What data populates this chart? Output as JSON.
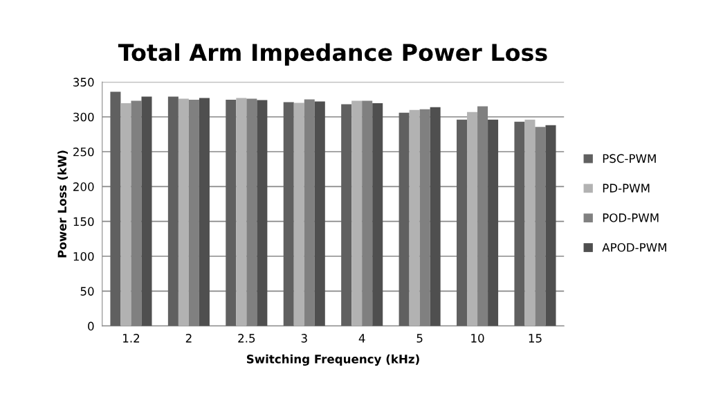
{
  "chart_data": {
    "type": "bar",
    "title": "Total Arm Impedance Power Loss",
    "xlabel": "Switching Frequency (kHz)",
    "ylabel": "Power Loss (kW)",
    "categories": [
      "1.2",
      "2",
      "2.5",
      "3",
      "4",
      "5",
      "10",
      "15"
    ],
    "series": [
      {
        "name": "PSC-PWM",
        "color": "#606060",
        "values": [
          336,
          329,
          324.5,
          321,
          318,
          306,
          296,
          293
        ]
      },
      {
        "name": "PD-PWM",
        "color": "#b2b2b2",
        "values": [
          319.5,
          326,
          327,
          320,
          323,
          310,
          307,
          296
        ]
      },
      {
        "name": "POD-PWM",
        "color": "#808080",
        "values": [
          323,
          324.5,
          326,
          325,
          323,
          311,
          315,
          285.5
        ]
      },
      {
        "name": "APOD-PWM",
        "color": "#4f4f4f",
        "values": [
          329,
          327,
          324,
          322,
          319.5,
          314,
          296,
          288
        ]
      }
    ],
    "ylim": [
      0,
      350
    ],
    "yticks": [
      0,
      50,
      100,
      150,
      200,
      250,
      300,
      350
    ],
    "grid": "y",
    "legend": "right"
  }
}
